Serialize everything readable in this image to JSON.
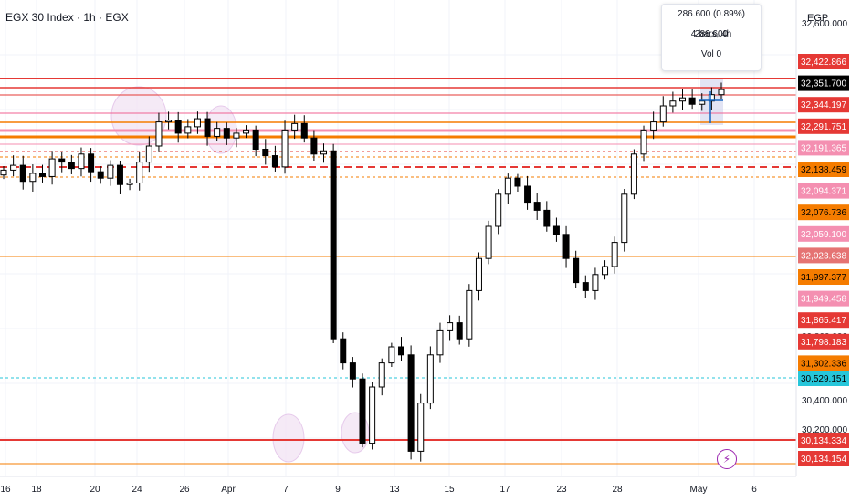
{
  "header": {
    "title": "EGX 30 Index · 1h · EGX",
    "currency": "EGP"
  },
  "tooltip": {
    "change": "286.600 (0.89%) 286,600",
    "bars": "4 bars, 4h",
    "volume": "Vol 0"
  },
  "colors": {
    "red_line": "#e53935",
    "orange_line": "#f57c00",
    "pink_line": "#f06292",
    "cyan_line": "#26c6da",
    "candle": "#000000",
    "highlight_ellipse": "#f3e5f5",
    "axis_text": "#131722"
  },
  "icons": {
    "event": "lightning-icon"
  },
  "chart_data": {
    "type": "candlestick",
    "x_axis_labels": [
      "16",
      "18",
      "20",
      "24",
      "26",
      "Apr",
      "7",
      "9",
      "13",
      "15",
      "17",
      "23",
      "28",
      "May",
      "6"
    ],
    "y_axis_ticks": [
      "32,600.000",
      "30,800.000",
      "30,600.000",
      "30,400.000",
      "30,200.000"
    ],
    "price_labels": [
      {
        "text": "32,422.866",
        "bg": "#e53935",
        "fg": "#ffffff"
      },
      {
        "text": "32,351.700",
        "bg": "#000000",
        "fg": "#ffffff"
      },
      {
        "text": "32,344.197",
        "bg": "#e53935",
        "fg": "#ffffff"
      },
      {
        "text": "32,291.751",
        "bg": "#e53935",
        "fg": "#ffffff"
      },
      {
        "text": "32,191.365",
        "bg": "#f48fb1",
        "fg": "#ffffff"
      },
      {
        "text": "32,138.459",
        "bg": "#f57c00",
        "fg": "#000000"
      },
      {
        "text": "32,094.371",
        "bg": "#f48fb1",
        "fg": "#ffffff"
      },
      {
        "text": "32,076.736",
        "bg": "#f57c00",
        "fg": "#000000"
      },
      {
        "text": "32,059.100",
        "bg": "#f48fb1",
        "fg": "#ffffff"
      },
      {
        "text": "32,023.638",
        "bg": "#e57373",
        "fg": "#ffffff"
      },
      {
        "text": "31,997.377",
        "bg": "#f57c00",
        "fg": "#000000"
      },
      {
        "text": "31,949.458",
        "bg": "#f48fb1",
        "fg": "#ffffff"
      },
      {
        "text": "31,865.417",
        "bg": "#e53935",
        "fg": "#ffffff"
      },
      {
        "text": "31,798.183",
        "bg": "#e53935",
        "fg": "#ffffff"
      },
      {
        "text": "31,302.336",
        "bg": "#f57c00",
        "fg": "#000000"
      },
      {
        "text": "30,529.151",
        "bg": "#26c6da",
        "fg": "#000000"
      },
      {
        "text": "30,134.334",
        "bg": "#e53935",
        "fg": "#ffffff"
      },
      {
        "text": "30,134.154",
        "bg": "#e53935",
        "fg": "#ffffff"
      }
    ],
    "horizontal_lines": [
      {
        "level": "32,422.866",
        "color": "#e53935",
        "style": "solid",
        "width": 2
      },
      {
        "level": "32,344.197",
        "color": "#e53935",
        "style": "solid",
        "width": 1.5
      },
      {
        "level": "32,291.751",
        "color": "#e53935",
        "style": "solid",
        "width": 1
      },
      {
        "level": "32,191.365",
        "color": "#f06292",
        "style": "solid",
        "width": 1
      },
      {
        "level": "32,138.459",
        "color": "#f57c00",
        "style": "solid",
        "width": 1.5
      },
      {
        "level": "32,094.371",
        "color": "#f48fb1",
        "style": "solid",
        "width": 3
      },
      {
        "level": "32,076.736",
        "color": "#f57c00",
        "style": "solid",
        "width": 3
      },
      {
        "level": "32,059.100",
        "color": "#f48fb1",
        "style": "solid",
        "width": 1
      },
      {
        "level": "32,023.638",
        "color": "#e53935",
        "style": "dashed",
        "width": 1
      },
      {
        "level": "31,997.377",
        "color": "#f57c00",
        "style": "dashed",
        "width": 1
      },
      {
        "level": "31,949.458",
        "color": "#e53935",
        "style": "dashed",
        "width": 2
      },
      {
        "level": "31,865.417",
        "color": "#f57c00",
        "style": "dashed",
        "width": 1
      },
      {
        "level": "31,302.336",
        "color": "#f57c00",
        "style": "solid",
        "width": 1
      },
      {
        "level": "30,529.151",
        "color": "#26c6da",
        "style": "dashed",
        "width": 1
      },
      {
        "level": "30,134.334",
        "color": "#e53935",
        "style": "solid",
        "width": 2
      },
      {
        "level": "30,134.154",
        "color": "#f57c00",
        "style": "solid",
        "width": 1
      }
    ],
    "candles_close_path": [
      31850,
      31880,
      31780,
      31830,
      31810,
      31920,
      31900,
      31860,
      31950,
      31840,
      31800,
      31880,
      31760,
      31770,
      31900,
      32000,
      32150,
      32160,
      32080,
      32120,
      32170,
      32060,
      32110,
      32050,
      32080,
      32100,
      31980,
      31940,
      31870,
      32100,
      32140,
      32050,
      31950,
      31970,
      30800,
      30650,
      30550,
      30150,
      30500,
      30650,
      30750,
      30700,
      30100,
      30400,
      30700,
      30850,
      30900,
      30800,
      31100,
      31300,
      31500,
      31700,
      31800,
      31750,
      31650,
      31600,
      31500,
      31450,
      31300,
      31150,
      31100,
      31200,
      31250,
      31400,
      31700,
      31950,
      32100,
      32150,
      32250,
      32280,
      32300,
      32260,
      32280,
      32320,
      32351.7
    ]
  }
}
